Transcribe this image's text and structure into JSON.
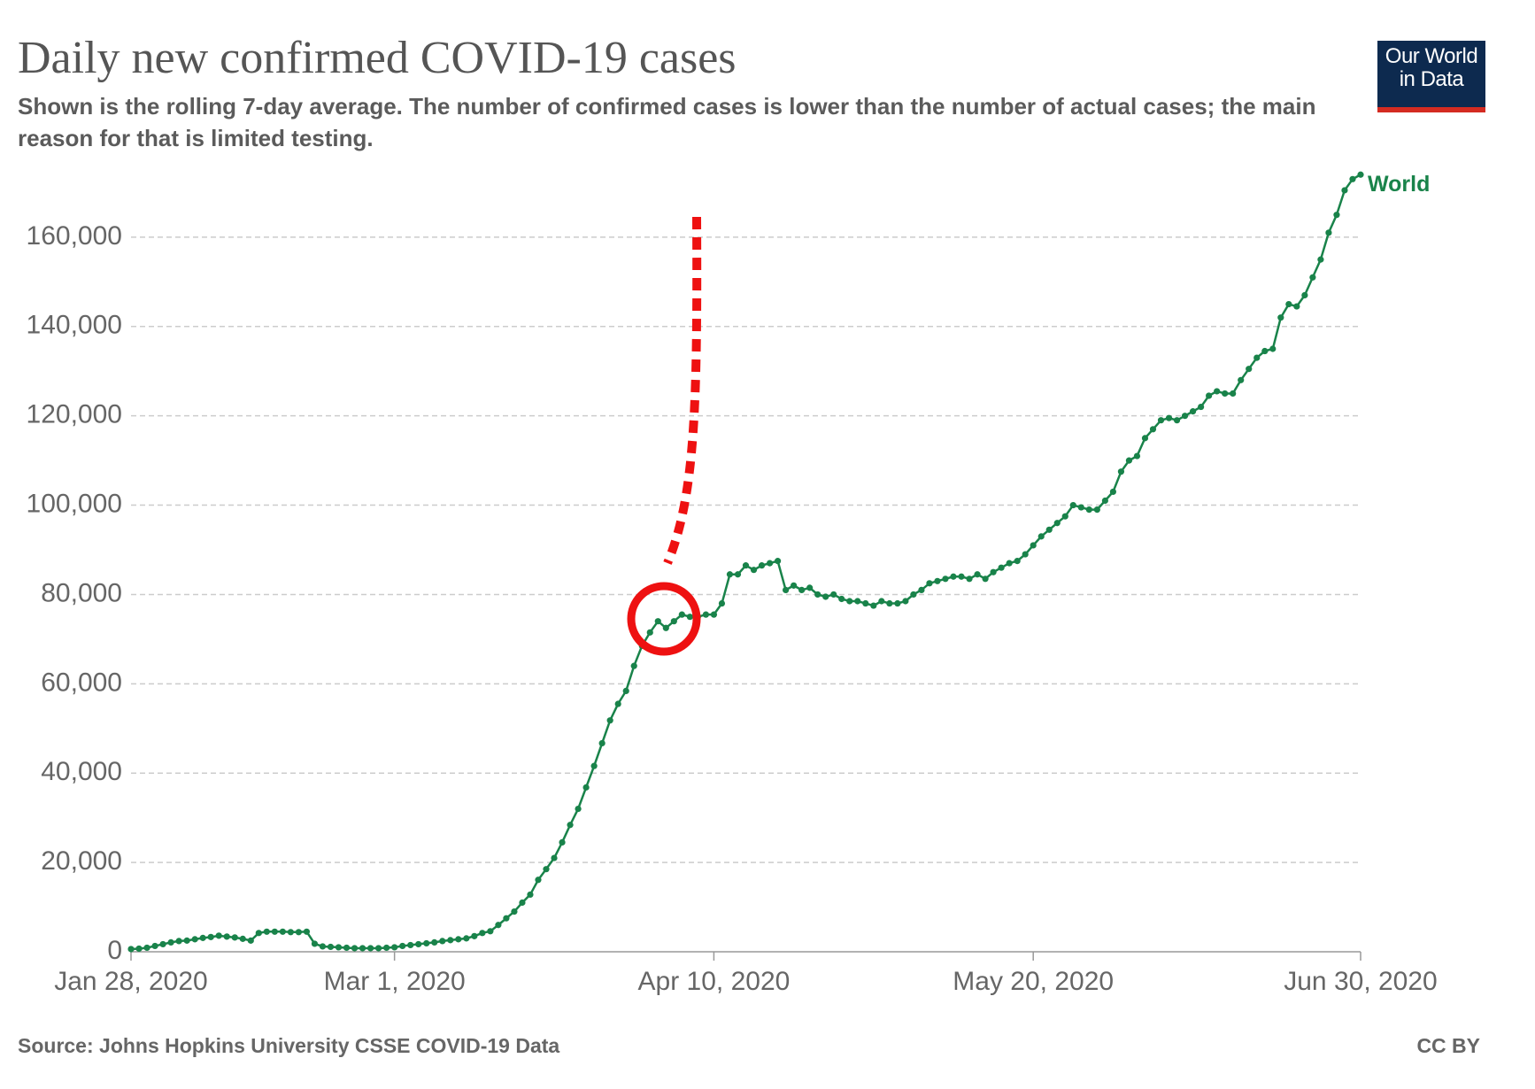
{
  "chart_data": {
    "type": "line",
    "title": "Daily new confirmed COVID-19 cases",
    "subtitle": "Shown is the rolling 7-day average. The number of confirmed cases is lower than the number of actual cases; the main reason for that is limited testing.",
    "logo": [
      "Our World",
      "in Data"
    ],
    "source": "Source: Johns Hopkins University CSSE COVID-19 Data",
    "license": "CC BY",
    "grid": true,
    "xlim": [
      "2020-01-28",
      "2020-06-30"
    ],
    "xticks": [
      {
        "value": "2020-01-28",
        "label": "Jan 28, 2020"
      },
      {
        "value": "2020-03-01",
        "label": "Mar 1, 2020"
      },
      {
        "value": "2020-04-10",
        "label": "Apr 10, 2020"
      },
      {
        "value": "2020-05-20",
        "label": "May 20, 2020"
      },
      {
        "value": "2020-06-30",
        "label": "Jun 30, 2020"
      }
    ],
    "ylim": [
      0,
      180000
    ],
    "yticks": [
      0,
      {
        "value": 20000,
        "label": "20,000"
      },
      {
        "value": 40000,
        "label": "40,000"
      },
      {
        "value": 60000,
        "label": "60,000"
      },
      {
        "value": 80000,
        "label": "80,000"
      },
      {
        "value": 100000,
        "label": "100,000"
      },
      {
        "value": 120000,
        "label": "120,000"
      },
      {
        "value": 140000,
        "label": "140,000"
      },
      {
        "value": 160000,
        "label": "160,000"
      }
    ],
    "x": [
      "2020-01-28",
      "2020-01-29",
      "2020-01-30",
      "2020-01-31",
      "2020-02-01",
      "2020-02-02",
      "2020-02-03",
      "2020-02-04",
      "2020-02-05",
      "2020-02-06",
      "2020-02-07",
      "2020-02-08",
      "2020-02-09",
      "2020-02-10",
      "2020-02-11",
      "2020-02-12",
      "2020-02-13",
      "2020-02-14",
      "2020-02-15",
      "2020-02-16",
      "2020-02-17",
      "2020-02-18",
      "2020-02-19",
      "2020-02-20",
      "2020-02-21",
      "2020-02-22",
      "2020-02-23",
      "2020-02-24",
      "2020-02-25",
      "2020-02-26",
      "2020-02-27",
      "2020-02-28",
      "2020-02-29",
      "2020-03-01",
      "2020-03-02",
      "2020-03-03",
      "2020-03-04",
      "2020-03-05",
      "2020-03-06",
      "2020-03-07",
      "2020-03-08",
      "2020-03-09",
      "2020-03-10",
      "2020-03-11",
      "2020-03-12",
      "2020-03-13",
      "2020-03-14",
      "2020-03-15",
      "2020-03-16",
      "2020-03-17",
      "2020-03-18",
      "2020-03-19",
      "2020-03-20",
      "2020-03-21",
      "2020-03-22",
      "2020-03-23",
      "2020-03-24",
      "2020-03-25",
      "2020-03-26",
      "2020-03-27",
      "2020-03-28",
      "2020-03-29",
      "2020-03-30",
      "2020-03-31",
      "2020-04-01",
      "2020-04-02",
      "2020-04-03",
      "2020-04-04",
      "2020-04-05",
      "2020-04-06",
      "2020-04-07",
      "2020-04-08",
      "2020-04-09",
      "2020-04-10",
      "2020-04-11",
      "2020-04-12",
      "2020-04-13",
      "2020-04-14",
      "2020-04-15",
      "2020-04-16",
      "2020-04-17",
      "2020-04-18",
      "2020-04-19",
      "2020-04-20",
      "2020-04-21",
      "2020-04-22",
      "2020-04-23",
      "2020-04-24",
      "2020-04-25",
      "2020-04-26",
      "2020-04-27",
      "2020-04-28",
      "2020-04-29",
      "2020-04-30",
      "2020-05-01",
      "2020-05-02",
      "2020-05-03",
      "2020-05-04",
      "2020-05-05",
      "2020-05-06",
      "2020-05-07",
      "2020-05-08",
      "2020-05-09",
      "2020-05-10",
      "2020-05-11",
      "2020-05-12",
      "2020-05-13",
      "2020-05-14",
      "2020-05-15",
      "2020-05-16",
      "2020-05-17",
      "2020-05-18",
      "2020-05-19",
      "2020-05-20",
      "2020-05-21",
      "2020-05-22",
      "2020-05-23",
      "2020-05-24",
      "2020-05-25",
      "2020-05-26",
      "2020-05-27",
      "2020-05-28",
      "2020-05-29",
      "2020-05-30",
      "2020-05-31",
      "2020-06-01",
      "2020-06-02",
      "2020-06-03",
      "2020-06-04",
      "2020-06-05",
      "2020-06-06",
      "2020-06-07",
      "2020-06-08",
      "2020-06-09",
      "2020-06-10",
      "2020-06-11",
      "2020-06-12",
      "2020-06-13",
      "2020-06-14",
      "2020-06-15",
      "2020-06-16",
      "2020-06-17",
      "2020-06-18",
      "2020-06-19",
      "2020-06-20",
      "2020-06-21",
      "2020-06-22",
      "2020-06-23",
      "2020-06-24",
      "2020-06-25",
      "2020-06-26",
      "2020-06-27",
      "2020-06-28",
      "2020-06-29",
      "2020-06-30"
    ],
    "series": [
      {
        "name": "World",
        "color": "#19834a",
        "values": [
          600,
          700,
          900,
          1300,
          1700,
          2100,
          2400,
          2500,
          2800,
          3100,
          3300,
          3600,
          3400,
          3200,
          2900,
          2500,
          4200,
          4500,
          4500,
          4500,
          4400,
          4400,
          4500,
          1800,
          1200,
          1100,
          1000,
          900,
          800,
          800,
          800,
          800,
          900,
          1000,
          1300,
          1500,
          1700,
          1900,
          2100,
          2400,
          2600,
          2800,
          3000,
          3500,
          4200,
          4600,
          6000,
          7500,
          9000,
          11000,
          12800,
          16100,
          18500,
          21000,
          24500,
          28400,
          32000,
          36800,
          41600,
          46700,
          51800,
          55500,
          58400,
          64000,
          68500,
          71500,
          74000,
          72500,
          74000,
          75500,
          75000,
          75000,
          75500,
          75500,
          78000,
          84500,
          84500,
          86500,
          85500,
          86500,
          87000,
          87500,
          81000,
          82000,
          81000,
          81500,
          80000,
          79500,
          80000,
          79000,
          78500,
          78500,
          78000,
          77500,
          78500,
          78000,
          78000,
          78500,
          80000,
          81000,
          82500,
          83000,
          83500,
          84000,
          84000,
          83500,
          84500,
          83500,
          85000,
          86000,
          87000,
          87500,
          89000,
          91000,
          93000,
          94500,
          96000,
          97500,
          100000,
          99500,
          99000,
          99000,
          101000,
          103000,
          107500,
          110000,
          111000,
          115000,
          117000,
          119000,
          119500,
          119000,
          120000,
          121000,
          122000,
          124500,
          125500,
          125000,
          125000,
          128000,
          130500,
          133000,
          134500,
          135000,
          142000,
          145000,
          144500,
          147000,
          151000,
          155000,
          161000,
          165000,
          170500,
          173000,
          174000
        ]
      }
    ]
  }
}
